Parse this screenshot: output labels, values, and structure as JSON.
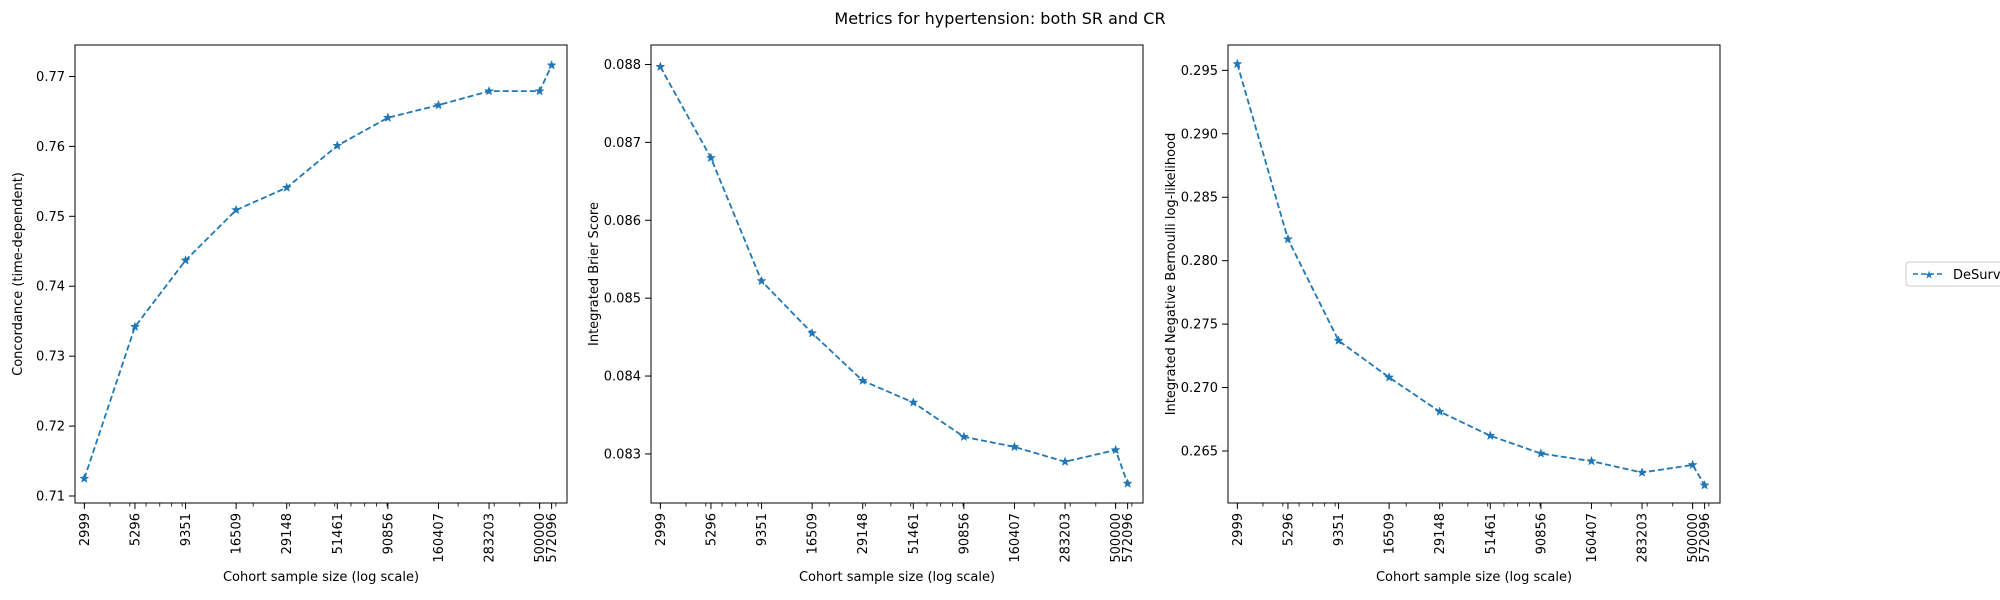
{
  "figure": {
    "title": "Metrics for hypertension: both SR and CR",
    "legend": {
      "entries": [
        "DeSurv"
      ],
      "placement": "right"
    },
    "line_color": "#1f77b4",
    "line_style": "dashed",
    "marker": "star"
  },
  "chart_data": [
    {
      "type": "line",
      "xlabel": "Cohort sample size (log scale)",
      "ylabel": "Concordance (time-dependent)",
      "xscale": "log",
      "xticks": [
        2999,
        5296,
        9351,
        16509,
        29148,
        51461,
        90856,
        160407,
        283203,
        500000,
        572096
      ],
      "xlim": [
        2700,
        680000
      ],
      "ylim": [
        0.709,
        0.7745
      ],
      "yticks": [
        "0.71",
        "0.72",
        "0.73",
        "0.74",
        "0.75",
        "0.76",
        "0.77"
      ],
      "series": [
        {
          "name": "DeSurv",
          "x": [
            2999,
            5296,
            9351,
            16509,
            29148,
            51461,
            90856,
            160407,
            283203,
            500000,
            572096
          ],
          "y": [
            0.7125,
            0.7342,
            0.7437,
            0.7509,
            0.7541,
            0.7601,
            0.7641,
            0.7659,
            0.7679,
            0.7679,
            0.7716
          ]
        }
      ]
    },
    {
      "type": "line",
      "xlabel": "Cohort sample size (log scale)",
      "ylabel": "Integrated Brier Score",
      "xscale": "log",
      "xticks": [
        2999,
        5296,
        9351,
        16509,
        29148,
        51461,
        90856,
        160407,
        283203,
        500000,
        572096
      ],
      "xlim": [
        2700,
        680000
      ],
      "ylim": [
        0.08237,
        0.08825
      ],
      "yticks": [
        "0.083",
        "0.084",
        "0.085",
        "0.086",
        "0.087",
        "0.088"
      ],
      "series": [
        {
          "name": "DeSurv",
          "x": [
            2999,
            5296,
            9351,
            16509,
            29148,
            51461,
            90856,
            160407,
            283203,
            500000,
            572096
          ],
          "y": [
            0.08797,
            0.0868,
            0.08522,
            0.08455,
            0.08394,
            0.08366,
            0.08322,
            0.08309,
            0.0829,
            0.08305,
            0.08262
          ]
        }
      ]
    },
    {
      "type": "line",
      "xlabel": "Cohort sample size (log scale)",
      "ylabel": "Integrated Negative Bernoulli log-likelihood",
      "xscale": "log",
      "xticks": [
        2999,
        5296,
        9351,
        16509,
        29148,
        51461,
        90856,
        160407,
        283203,
        500000,
        572096
      ],
      "xlim": [
        2700,
        680000
      ],
      "ylim": [
        0.2609,
        0.297
      ],
      "yticks": [
        "0.265",
        "0.270",
        "0.275",
        "0.280",
        "0.285",
        "0.290",
        "0.295"
      ],
      "series": [
        {
          "name": "DeSurv",
          "x": [
            2999,
            5296,
            9351,
            16509,
            29148,
            51461,
            90856,
            160407,
            283203,
            500000,
            572096
          ],
          "y": [
            0.2955,
            0.2817,
            0.2737,
            0.2708,
            0.2681,
            0.2662,
            0.2648,
            0.2642,
            0.2633,
            0.2639,
            0.2623
          ]
        }
      ]
    }
  ]
}
